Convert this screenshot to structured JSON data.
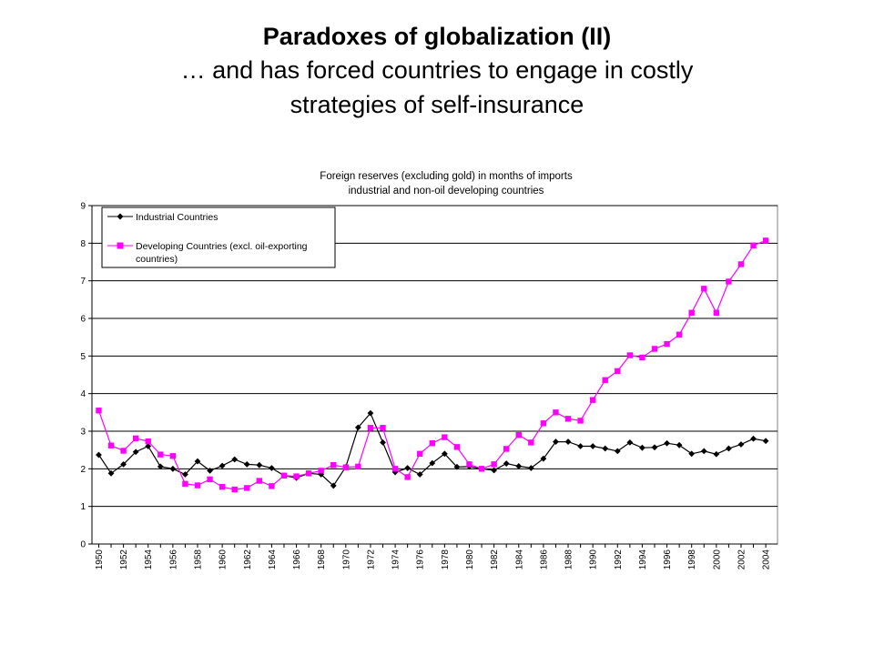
{
  "slide": {
    "title": "Paradoxes of globalization (II)",
    "subtitle_line1": "… and has forced countries to engage in costly",
    "subtitle_line2": "strategies of self-insurance"
  },
  "chart_data": {
    "type": "line",
    "title_line1": "Foreign reserves (excluding gold) in months of imports",
    "title_line2": "industrial and non-oil developing countries",
    "xlabel": "",
    "ylabel": "",
    "ylim": [
      0,
      9
    ],
    "yticks": [
      0,
      1,
      2,
      3,
      4,
      5,
      6,
      7,
      8,
      9
    ],
    "x": [
      1950,
      1951,
      1952,
      1953,
      1954,
      1955,
      1956,
      1957,
      1958,
      1959,
      1960,
      1961,
      1962,
      1963,
      1964,
      1965,
      1966,
      1967,
      1968,
      1969,
      1970,
      1971,
      1972,
      1973,
      1974,
      1975,
      1976,
      1977,
      1978,
      1979,
      1980,
      1981,
      1982,
      1983,
      1984,
      1985,
      1986,
      1987,
      1988,
      1989,
      1990,
      1991,
      1992,
      1993,
      1994,
      1995,
      1996,
      1997,
      1998,
      1999,
      2000,
      2001,
      2002,
      2003,
      2004
    ],
    "xtick_labels": [
      "1950",
      "1952",
      "1954",
      "1956",
      "1958",
      "1960",
      "1962",
      "1964",
      "1966",
      "1968",
      "1970",
      "1972",
      "1974",
      "1976",
      "1978",
      "1980",
      "1982",
      "1984",
      "1986",
      "1988",
      "1990",
      "1992",
      "1994",
      "1996",
      "1998",
      "2000",
      "2002",
      "2004"
    ],
    "grid": "horizontal",
    "legend_position": "top-left",
    "series": [
      {
        "name": "Industrial Countries",
        "color": "#000000",
        "marker": "diamond",
        "values": [
          2.37,
          1.88,
          2.12,
          2.45,
          2.6,
          2.06,
          2.0,
          1.85,
          2.2,
          1.95,
          2.08,
          2.25,
          2.12,
          2.1,
          2.02,
          1.82,
          1.76,
          1.88,
          1.85,
          1.55,
          2.05,
          3.1,
          3.48,
          2.7,
          1.91,
          2.02,
          1.85,
          2.15,
          2.4,
          2.05,
          2.06,
          2.0,
          1.96,
          2.14,
          2.07,
          2.02,
          2.27,
          2.72,
          2.72,
          2.6,
          2.6,
          2.54,
          2.47,
          2.7,
          2.56,
          2.57,
          2.68,
          2.63,
          2.4,
          2.47,
          2.39,
          2.54,
          2.65,
          2.8,
          2.74
        ]
      },
      {
        "name": "Developing Countries (excl. oil-exporting countries)",
        "legend_line1": "Developing Countries (excl. oil-exporting",
        "legend_line2": "countries)",
        "color": "#ff00ff",
        "marker": "square",
        "values": [
          3.55,
          2.62,
          2.48,
          2.81,
          2.73,
          2.38,
          2.34,
          1.6,
          1.56,
          1.72,
          1.52,
          1.45,
          1.49,
          1.68,
          1.54,
          1.82,
          1.8,
          1.88,
          1.95,
          2.1,
          2.04,
          2.06,
          3.09,
          3.09,
          2.0,
          1.78,
          2.4,
          2.68,
          2.84,
          2.58,
          2.12,
          2.0,
          2.12,
          2.53,
          2.9,
          2.7,
          3.21,
          3.5,
          3.33,
          3.28,
          3.83,
          4.36,
          4.6,
          5.02,
          4.96,
          5.19,
          5.32,
          5.57,
          6.15,
          6.79,
          6.15,
          6.98,
          7.44,
          7.94,
          8.07
        ]
      }
    ]
  }
}
